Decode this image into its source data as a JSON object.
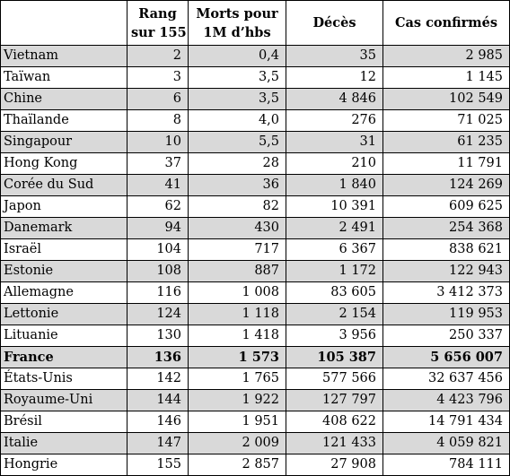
{
  "headers": {
    "country": "",
    "rank_line1": "Rang",
    "rank_line2": "sur 155",
    "deaths_per_million_line1": "Morts pour",
    "deaths_per_million_line2": "1M d’hbs",
    "deaths": "Décès",
    "cases": "Cas confirmés"
  },
  "rows": [
    {
      "country": "Vietnam",
      "rank": "2",
      "deaths_per_million": "0,4",
      "deaths": "35",
      "cases": "2 985",
      "shaded": true,
      "bold": false
    },
    {
      "country": "Taïwan",
      "rank": "3",
      "deaths_per_million": "3,5",
      "deaths": "12",
      "cases": "1 145",
      "shaded": false,
      "bold": false
    },
    {
      "country": "Chine",
      "rank": "6",
      "deaths_per_million": "3,5",
      "deaths": "4 846",
      "cases": "102 549",
      "shaded": true,
      "bold": false
    },
    {
      "country": "Thaïlande",
      "rank": "8",
      "deaths_per_million": "4,0",
      "deaths": "276",
      "cases": "71 025",
      "shaded": false,
      "bold": false
    },
    {
      "country": "Singapour",
      "rank": "10",
      "deaths_per_million": "5,5",
      "deaths": "31",
      "cases": "61 235",
      "shaded": true,
      "bold": false
    },
    {
      "country": "Hong Kong",
      "rank": "37",
      "deaths_per_million": "28",
      "deaths": "210",
      "cases": "11 791",
      "shaded": false,
      "bold": false
    },
    {
      "country": "Corée du Sud",
      "rank": "41",
      "deaths_per_million": "36",
      "deaths": "1 840",
      "cases": "124 269",
      "shaded": true,
      "bold": false
    },
    {
      "country": "Japon",
      "rank": "62",
      "deaths_per_million": "82",
      "deaths": "10 391",
      "cases": "609 625",
      "shaded": false,
      "bold": false
    },
    {
      "country": "Danemark",
      "rank": "94",
      "deaths_per_million": "430",
      "deaths": "2 491",
      "cases": "254 368",
      "shaded": true,
      "bold": false
    },
    {
      "country": "Israël",
      "rank": "104",
      "deaths_per_million": "717",
      "deaths": "6 367",
      "cases": "838 621",
      "shaded": false,
      "bold": false
    },
    {
      "country": "Estonie",
      "rank": "108",
      "deaths_per_million": "887",
      "deaths": "1 172",
      "cases": "122 943",
      "shaded": true,
      "bold": false
    },
    {
      "country": "Allemagne",
      "rank": "116",
      "deaths_per_million": "1 008",
      "deaths": "83 605",
      "cases": "3 412 373",
      "shaded": false,
      "bold": false
    },
    {
      "country": "Lettonie",
      "rank": "124",
      "deaths_per_million": "1 118",
      "deaths": "2 154",
      "cases": "119 953",
      "shaded": true,
      "bold": false
    },
    {
      "country": "Lituanie",
      "rank": "130",
      "deaths_per_million": "1 418",
      "deaths": "3 956",
      "cases": "250 337",
      "shaded": false,
      "bold": false
    },
    {
      "country": "France",
      "rank": "136",
      "deaths_per_million": "1 573",
      "deaths": "105 387",
      "cases": "5 656 007",
      "shaded": true,
      "bold": true
    },
    {
      "country": "États-Unis",
      "rank": "142",
      "deaths_per_million": "1 765",
      "deaths": "577 566",
      "cases": "32 637 456",
      "shaded": false,
      "bold": false
    },
    {
      "country": "Royaume-Uni",
      "rank": "144",
      "deaths_per_million": "1 922",
      "deaths": "127 797",
      "cases": "4 423 796",
      "shaded": true,
      "bold": false
    },
    {
      "country": "Brésil",
      "rank": "146",
      "deaths_per_million": "1 951",
      "deaths": "408 622",
      "cases": "14 791 434",
      "shaded": false,
      "bold": false
    },
    {
      "country": "Italie",
      "rank": "147",
      "deaths_per_million": "2 009",
      "deaths": "121 433",
      "cases": "4 059 821",
      "shaded": true,
      "bold": false
    },
    {
      "country": "Hongrie",
      "rank": "155",
      "deaths_per_million": "2 857",
      "deaths": "27 908",
      "cases": "784 111",
      "shaded": false,
      "bold": false
    }
  ]
}
